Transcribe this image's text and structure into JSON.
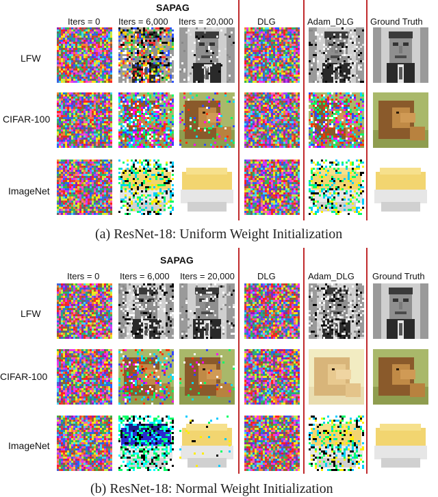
{
  "panels": [
    {
      "group_title": "SAPAG",
      "columns": [
        "Iters = 0",
        "Iters = 6,000",
        "Iters = 20,000",
        "DLG",
        "Adam_DLG",
        "Ground Truth"
      ],
      "rows": [
        "LFW",
        "CIFAR-100",
        "ImageNet"
      ],
      "caption": "(a) ResNet-18: Uniform Weight Initialization"
    },
    {
      "group_title": "SAPAG",
      "columns": [
        "Iters = 0",
        "Iters = 6,000",
        "Iters = 20,000",
        "DLG",
        "Adam_DLG",
        "Ground Truth"
      ],
      "rows": [
        "LFW",
        "CIFAR-100",
        "ImageNet"
      ],
      "caption": "(b) ResNet-18: Normal Weight Initialization"
    }
  ],
  "colors": {
    "separator": "#c0282b"
  }
}
